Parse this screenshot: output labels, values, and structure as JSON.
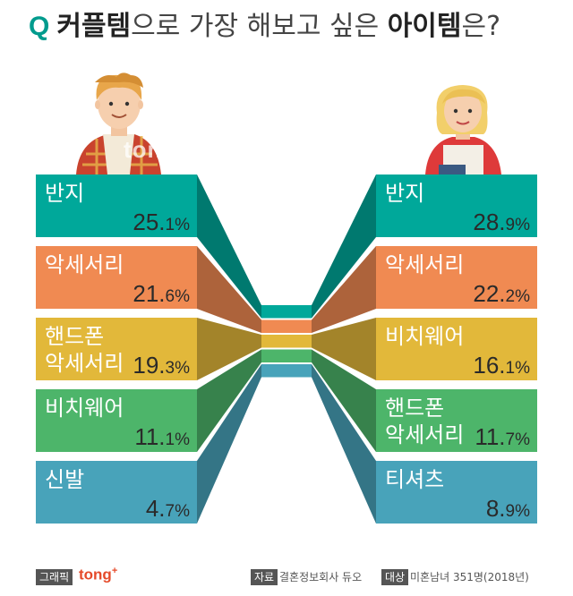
{
  "title": {
    "q": "Q",
    "part1": "커플템",
    "part2": "으로 가장 해보고 싶은 ",
    "part3": "아이템",
    "part4": "은?"
  },
  "colors": [
    "#00a89a",
    "#f08a52",
    "#e2b83a",
    "#4db56a",
    "#48a3ba"
  ],
  "chart_data": {
    "type": "bar",
    "title": "커플템으로 가장 해보고 싶은 아이템은?",
    "unit": "%",
    "series": [
      {
        "name": "left",
        "items": [
          {
            "label": [
              "반지"
            ],
            "value": 25.1
          },
          {
            "label": [
              "악세서리"
            ],
            "value": 21.6
          },
          {
            "label": [
              "핸드폰",
              "악세서리"
            ],
            "value": 19.3
          },
          {
            "label": [
              "비치웨어"
            ],
            "value": 11.1
          },
          {
            "label": [
              "신발"
            ],
            "value": 4.7
          }
        ]
      },
      {
        "name": "right",
        "items": [
          {
            "label": [
              "반지"
            ],
            "value": 28.9
          },
          {
            "label": [
              "악세서리"
            ],
            "value": 22.2
          },
          {
            "label": [
              "비치웨어"
            ],
            "value": 16.1
          },
          {
            "label": [
              "핸드폰",
              "악세서리"
            ],
            "value": 11.7
          },
          {
            "label": [
              "티셔츠"
            ],
            "value": 8.9
          }
        ]
      }
    ]
  },
  "watermark": "tong",
  "footer": {
    "graphic_tag": "그래픽",
    "brand": "tong",
    "source_tag": "자료",
    "source": "결혼정보회사 듀오",
    "target_tag": "대상",
    "target": "미혼남녀 351명(2018년)"
  }
}
